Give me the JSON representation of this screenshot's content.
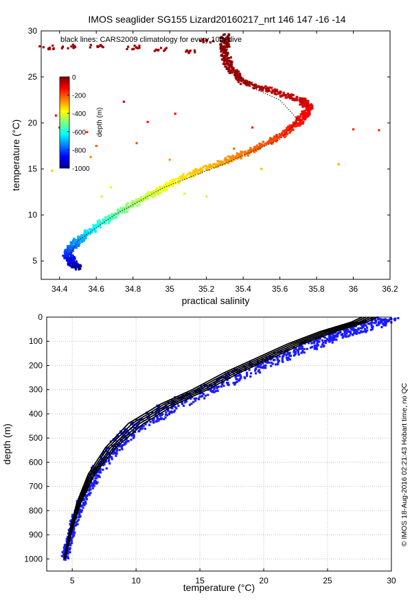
{
  "figure": {
    "title": "IMOS seaglider SG155 Lizard20160217_nrt 146  147  -16  -14",
    "annotation": "black lines: CARS2009 climatology for every 10th dive",
    "credit": "© IMOS 18-Aug-2016 02:21:43 Hobart time, no QC"
  },
  "chart_data": [
    {
      "type": "scatter",
      "xlabel": "practical salinity",
      "ylabel": "temperature (°C)",
      "xlim": [
        34.3,
        36.2
      ],
      "ylim": [
        3,
        30
      ],
      "xticks": [
        34.4,
        34.6,
        34.8,
        35,
        35.2,
        35.4,
        35.6,
        35.8,
        36,
        36.2
      ],
      "xtick_labels": [
        "34.4",
        "34.6",
        "34.8",
        "35",
        "35.2",
        "35.4",
        "35.6",
        "35.8",
        "36",
        "36.2"
      ],
      "yticks": [
        5,
        10,
        15,
        20,
        25,
        30
      ],
      "ytick_labels": [
        "5",
        "10",
        "15",
        "20",
        "25",
        "30"
      ],
      "grid": false,
      "color_by": "depth (m)",
      "colorbar": {
        "label": "depth (m)",
        "range": [
          -1000,
          0
        ],
        "ticks": [
          0,
          -200,
          -400,
          -600,
          -800,
          -1000
        ],
        "tick_labels": [
          "0",
          "-200",
          "-400",
          "-600",
          "-800",
          "-1000"
        ],
        "placement": "top-left"
      },
      "observed_profile": [
        {
          "salinity": 34.5,
          "temperature": 4.2,
          "depth": -1000
        },
        {
          "salinity": 34.46,
          "temperature": 5.0,
          "depth": -900
        },
        {
          "salinity": 34.44,
          "temperature": 6.0,
          "depth": -820
        },
        {
          "salinity": 34.5,
          "temperature": 7.2,
          "depth": -720
        },
        {
          "salinity": 34.58,
          "temperature": 8.5,
          "depth": -640
        },
        {
          "salinity": 34.7,
          "temperature": 10.0,
          "depth": -540
        },
        {
          "salinity": 34.83,
          "temperature": 11.5,
          "depth": -460
        },
        {
          "salinity": 34.97,
          "temperature": 13.0,
          "depth": -390
        },
        {
          "salinity": 35.12,
          "temperature": 14.5,
          "depth": -330
        },
        {
          "salinity": 35.3,
          "temperature": 15.8,
          "depth": -280
        },
        {
          "salinity": 35.45,
          "temperature": 17.0,
          "depth": -230
        },
        {
          "salinity": 35.6,
          "temperature": 18.5,
          "depth": -180
        },
        {
          "salinity": 35.7,
          "temperature": 20.0,
          "depth": -140
        },
        {
          "salinity": 35.76,
          "temperature": 21.5,
          "depth": -110
        },
        {
          "salinity": 35.72,
          "temperature": 22.5,
          "depth": -80
        },
        {
          "salinity": 35.55,
          "temperature": 23.5,
          "depth": -60
        },
        {
          "salinity": 35.4,
          "temperature": 24.5,
          "depth": -40
        },
        {
          "salinity": 35.32,
          "temperature": 26.0,
          "depth": -25
        },
        {
          "salinity": 35.3,
          "temperature": 28.0,
          "depth": -10
        },
        {
          "salinity": 35.3,
          "temperature": 29.5,
          "depth": -2
        }
      ],
      "surface_spread_points": [
        {
          "salinity": 34.45,
          "temperature": 28.3
        },
        {
          "salinity": 34.6,
          "temperature": 28.4
        },
        {
          "salinity": 34.8,
          "temperature": 28.2
        },
        {
          "salinity": 34.95,
          "temperature": 28.0
        },
        {
          "salinity": 35.1,
          "temperature": 27.8
        },
        {
          "salinity": 35.2,
          "temperature": 28.9
        },
        {
          "salinity": 34.33,
          "temperature": 28.2
        }
      ],
      "outliers": [
        {
          "salinity": 34.38,
          "temperature": 20.8
        },
        {
          "salinity": 34.4,
          "temperature": 19.5
        },
        {
          "salinity": 34.55,
          "temperature": 19.0
        },
        {
          "salinity": 34.6,
          "temperature": 17.5
        },
        {
          "salinity": 34.57,
          "temperature": 16.3
        },
        {
          "salinity": 34.75,
          "temperature": 22.3
        },
        {
          "salinity": 34.88,
          "temperature": 20.1
        },
        {
          "salinity": 35.03,
          "temperature": 21.0
        },
        {
          "salinity": 35.0,
          "temperature": 16.0
        },
        {
          "salinity": 34.82,
          "temperature": 17.8
        },
        {
          "salinity": 34.68,
          "temperature": 13.0
        },
        {
          "salinity": 34.63,
          "temperature": 12.0
        },
        {
          "salinity": 35.08,
          "temperature": 12.3
        },
        {
          "salinity": 35.2,
          "temperature": 12.0
        },
        {
          "salinity": 35.35,
          "temperature": 17.2
        },
        {
          "salinity": 35.45,
          "temperature": 19.5
        },
        {
          "salinity": 36.0,
          "temperature": 19.3
        },
        {
          "salinity": 36.14,
          "temperature": 19.2
        },
        {
          "salinity": 35.92,
          "temperature": 15.5
        },
        {
          "salinity": 35.5,
          "temperature": 15.0
        },
        {
          "salinity": 34.36,
          "temperature": 14.8
        }
      ],
      "climatology_profile": [
        {
          "salinity": 34.5,
          "temperature": 4.2
        },
        {
          "salinity": 34.45,
          "temperature": 5.5
        },
        {
          "salinity": 34.5,
          "temperature": 7.2
        },
        {
          "salinity": 34.7,
          "temperature": 10.0
        },
        {
          "salinity": 34.97,
          "temperature": 13.0
        },
        {
          "salinity": 35.3,
          "temperature": 15.6
        },
        {
          "salinity": 35.6,
          "temperature": 18.2
        },
        {
          "salinity": 35.7,
          "temperature": 20.3
        },
        {
          "salinity": 35.6,
          "temperature": 22.5
        },
        {
          "salinity": 35.45,
          "temperature": 23.8
        },
        {
          "salinity": 35.35,
          "temperature": 25.5
        }
      ]
    },
    {
      "type": "scatter",
      "xlabel": "temperature (°C)",
      "ylabel": "depth (m)",
      "xlim": [
        3,
        30
      ],
      "ylim": [
        1050,
        0
      ],
      "y_reversed": true,
      "xticks": [
        5,
        10,
        15,
        20,
        25,
        30
      ],
      "xtick_labels": [
        "5",
        "10",
        "15",
        "20",
        "25",
        "30"
      ],
      "yticks": [
        0,
        100,
        200,
        300,
        400,
        500,
        600,
        700,
        800,
        900,
        1000
      ],
      "ytick_labels": [
        "0",
        "100",
        "200",
        "300",
        "400",
        "500",
        "600",
        "700",
        "800",
        "900",
        "1000"
      ],
      "grid": true,
      "series": [
        {
          "kind": "observations",
          "color": "#1a1aff",
          "points": [
            {
              "temperature": 29.5,
              "depth": 5
            },
            {
              "temperature": 28.5,
              "depth": 30
            },
            {
              "temperature": 27,
              "depth": 60
            },
            {
              "temperature": 25.5,
              "depth": 80
            },
            {
              "temperature": 24,
              "depth": 110
            },
            {
              "temperature": 22,
              "depth": 150
            },
            {
              "temperature": 20,
              "depth": 190
            },
            {
              "temperature": 18,
              "depth": 240
            },
            {
              "temperature": 16,
              "depth": 290
            },
            {
              "temperature": 14,
              "depth": 340
            },
            {
              "temperature": 12,
              "depth": 390
            },
            {
              "temperature": 10.5,
              "depth": 440
            },
            {
              "temperature": 9,
              "depth": 500
            },
            {
              "temperature": 8,
              "depth": 560
            },
            {
              "temperature": 7,
              "depth": 630
            },
            {
              "temperature": 6.3,
              "depth": 700
            },
            {
              "temperature": 5.6,
              "depth": 780
            },
            {
              "temperature": 5.1,
              "depth": 860
            },
            {
              "temperature": 4.7,
              "depth": 940
            },
            {
              "temperature": 4.4,
              "depth": 1000
            }
          ]
        },
        {
          "kind": "climatology",
          "color": "#000000",
          "points": [
            {
              "temperature": 28.3,
              "depth": 0
            },
            {
              "temperature": 27.5,
              "depth": 20
            },
            {
              "temperature": 25,
              "depth": 60
            },
            {
              "temperature": 22.5,
              "depth": 110
            },
            {
              "temperature": 20,
              "depth": 170
            },
            {
              "temperature": 17.5,
              "depth": 230
            },
            {
              "temperature": 15,
              "depth": 300
            },
            {
              "temperature": 12.5,
              "depth": 360
            },
            {
              "temperature": 10,
              "depth": 440
            },
            {
              "temperature": 8,
              "depth": 540
            },
            {
              "temperature": 6.5,
              "depth": 650
            },
            {
              "temperature": 5.5,
              "depth": 770
            },
            {
              "temperature": 4.9,
              "depth": 880
            },
            {
              "temperature": 4.4,
              "depth": 1000
            }
          ]
        }
      ]
    }
  ]
}
